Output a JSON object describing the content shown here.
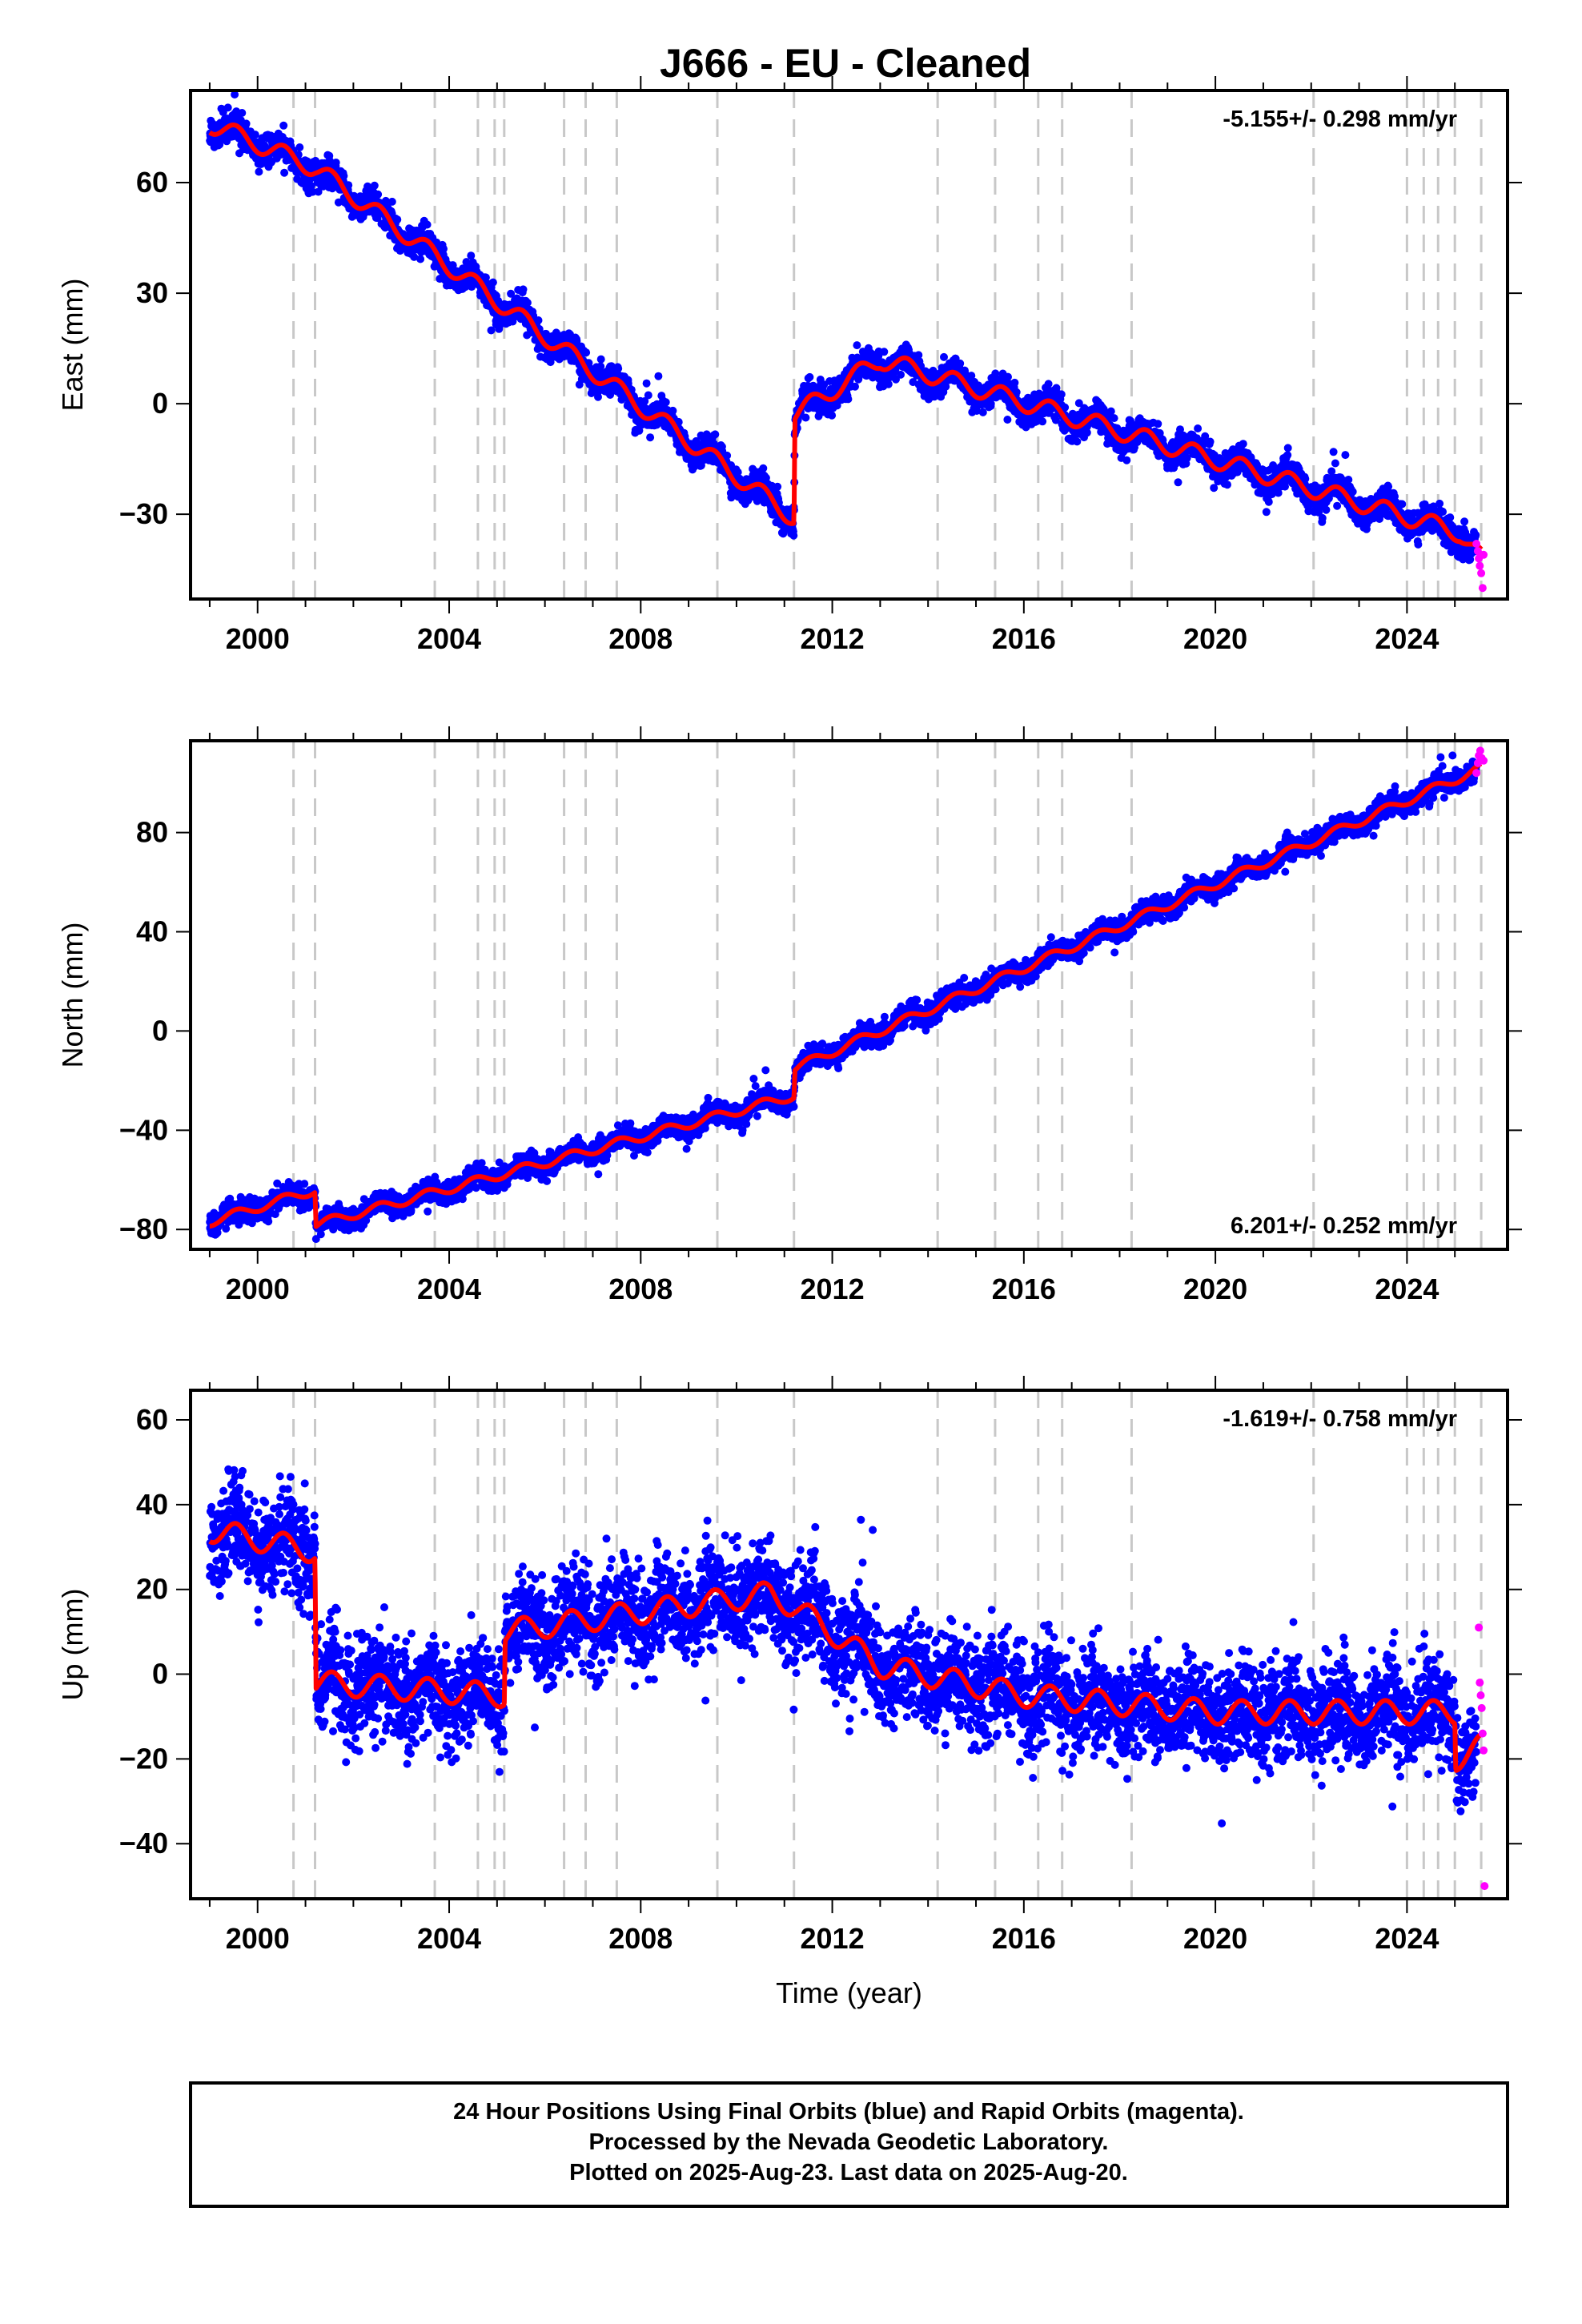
{
  "title": "J666  - EU - Cleaned",
  "colors": {
    "final": "#0000ff",
    "rapid": "#ff00ff",
    "model": "#ff0000",
    "events": "#c8c8c8"
  },
  "footer": {
    "line1": "24 Hour Positions Using Final Orbits (blue) and Rapid Orbits (magenta).",
    "line2": "Processed by the Nevada Geodetic Laboratory.",
    "line3": "Plotted on 2025-Aug-23. Last data on 2025-Aug-20."
  },
  "chart_data": [
    {
      "type": "scatter",
      "ylabel": "East (mm)",
      "xlabel": "",
      "rate": "-5.155+/- 0.298 mm/yr",
      "rate_position": "top-right",
      "xlim": [
        1998.6,
        2026.1
      ],
      "ylim": [
        -53,
        85
      ],
      "xticks": [
        2000,
        2004,
        2008,
        2012,
        2016,
        2020,
        2024
      ],
      "yticks": [
        -30,
        0,
        30,
        60
      ],
      "events": [
        2000.75,
        2001.2,
        2003.7,
        2004.6,
        2004.95,
        2005.15,
        2006.4,
        2006.85,
        2007.5,
        2009.6,
        2011.2,
        2014.2,
        2015.4,
        2016.3,
        2016.8,
        2018.25,
        2022.05,
        2024.0,
        2024.35,
        2024.65,
        2025.0,
        2025.55
      ],
      "model": {
        "rate": -5.155,
        "anchors": [
          [
            1999.0,
            76
          ],
          [
            2001.2,
            64
          ],
          [
            2011.2,
            -31
          ],
          [
            2011.22,
            -3
          ],
          [
            2013.0,
            12
          ],
          [
            2025.1,
            -35
          ],
          [
            2025.55,
            -42
          ]
        ],
        "seasonal_amp": 2.5,
        "steps": [
          [
            2001.2,
            -2
          ],
          [
            2011.2,
            28
          ]
        ]
      },
      "scatter_sd": 2.0,
      "final_points": 4800,
      "rapid_points": [
        [
          2025.45,
          -38
        ],
        [
          2025.48,
          -40
        ],
        [
          2025.5,
          -42
        ],
        [
          2025.52,
          -44
        ],
        [
          2025.55,
          -46
        ],
        [
          2025.58,
          -50
        ],
        [
          2025.6,
          -41
        ]
      ]
    },
    {
      "type": "scatter",
      "ylabel": "North (mm)",
      "xlabel": "",
      "rate": "6.201+/- 0.252 mm/yr",
      "rate_position": "bottom-right",
      "xlim": [
        1998.6,
        2026.1
      ],
      "ylim": [
        -88,
        117
      ],
      "xticks": [
        2000,
        2004,
        2008,
        2012,
        2016,
        2020,
        2024
      ],
      "yticks": [
        -80,
        -40,
        0,
        40,
        80
      ],
      "events": [
        2000.75,
        2001.2,
        2003.7,
        2004.6,
        2004.95,
        2005.15,
        2006.4,
        2006.85,
        2007.5,
        2009.6,
        2011.2,
        2014.2,
        2015.4,
        2016.3,
        2016.8,
        2018.25,
        2022.05,
        2024.0,
        2024.35,
        2024.65,
        2025.0,
        2025.55
      ],
      "model": {
        "rate": 6.201,
        "anchors": [
          [
            1999.0,
            -77
          ],
          [
            2001.2,
            -64
          ],
          [
            2001.22,
            -78
          ],
          [
            2011.2,
            -26
          ],
          [
            2011.22,
            -15
          ],
          [
            2025.55,
            106
          ]
        ],
        "seasonal_amp": 1.8,
        "steps": []
      },
      "scatter_sd": 2.2,
      "final_points": 4800,
      "rapid_points": [
        [
          2025.45,
          104
        ],
        [
          2025.48,
          108
        ],
        [
          2025.5,
          111
        ],
        [
          2025.53,
          113
        ],
        [
          2025.56,
          110
        ],
        [
          2025.6,
          109
        ]
      ]
    },
    {
      "type": "scatter",
      "ylabel": "Up (mm)",
      "xlabel": "Time (year)",
      "rate": "-1.619+/- 0.758 mm/yr",
      "rate_position": "top-right",
      "xlim": [
        1998.6,
        2026.1
      ],
      "ylim": [
        -53,
        67
      ],
      "xticks": [
        2000,
        2004,
        2008,
        2012,
        2016,
        2020,
        2024
      ],
      "yticks": [
        -40,
        -20,
        0,
        20,
        40,
        60
      ],
      "events": [
        2000.75,
        2001.2,
        2003.7,
        2004.6,
        2004.95,
        2005.15,
        2006.4,
        2006.85,
        2007.5,
        2009.6,
        2011.2,
        2014.2,
        2015.4,
        2016.3,
        2016.8,
        2018.25,
        2022.05,
        2024.0,
        2024.35,
        2024.65,
        2025.0,
        2025.55
      ],
      "model": {
        "rate": -1.619,
        "anchors": [
          [
            1999.0,
            34
          ],
          [
            2001.2,
            29
          ],
          [
            2001.22,
            -2
          ],
          [
            2005.15,
            -5
          ],
          [
            2005.17,
            10
          ],
          [
            2010.7,
            19
          ],
          [
            2011.2,
            16
          ],
          [
            2013.0,
            2
          ],
          [
            2016.0,
            -5
          ],
          [
            2020.0,
            -9
          ],
          [
            2025.0,
            -9
          ],
          [
            2025.02,
            -20
          ],
          [
            2025.55,
            -17
          ]
        ],
        "seasonal_amp": 2.8,
        "steps": []
      },
      "scatter_sd": 6.0,
      "final_points": 4800,
      "rapid_points": [
        [
          2025.5,
          11
        ],
        [
          2025.52,
          -2
        ],
        [
          2025.54,
          -5
        ],
        [
          2025.56,
          -8
        ],
        [
          2025.58,
          -14
        ],
        [
          2025.6,
          -18
        ],
        [
          2025.62,
          -50
        ]
      ]
    }
  ]
}
